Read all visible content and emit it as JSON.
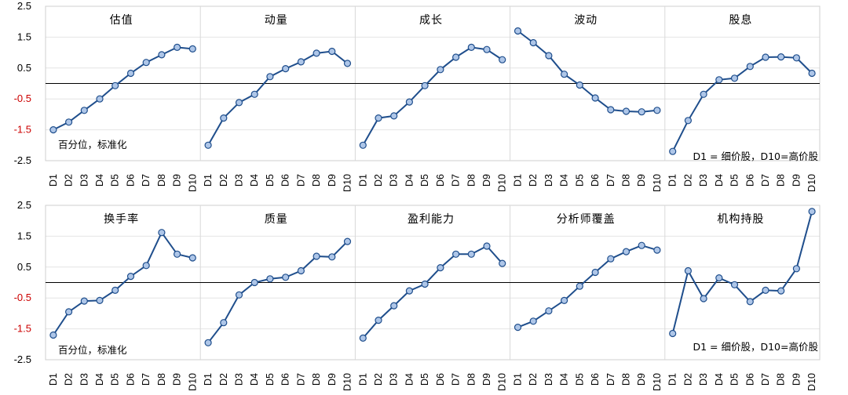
{
  "note_rank": "百分位，标准化",
  "note_legend": "D1 = 细价股，D10=高价股",
  "chart_data": [
    {
      "type": "line",
      "categories": [
        "D1",
        "D2",
        "D3",
        "D4",
        "D5",
        "D6",
        "D7",
        "D8",
        "D9",
        "D10"
      ],
      "ylim": [
        -2.5,
        2.5
      ],
      "yticks": [
        "2.5",
        "1.5",
        "0.5",
        "-0.5",
        "-1.5",
        "-2.5"
      ],
      "panels": [
        {
          "title": "估值",
          "values": [
            -1.5,
            -1.25,
            -0.87,
            -0.5,
            -0.07,
            0.33,
            0.68,
            0.93,
            1.17,
            1.12
          ]
        },
        {
          "title": "动量",
          "values": [
            -2.0,
            -1.12,
            -0.62,
            -0.35,
            0.22,
            0.48,
            0.7,
            0.98,
            1.04,
            0.65
          ]
        },
        {
          "title": "成长",
          "values": [
            -2.0,
            -1.12,
            -1.05,
            -0.6,
            -0.07,
            0.45,
            0.85,
            1.17,
            1.1,
            0.77
          ]
        },
        {
          "title": "波动",
          "values": [
            1.7,
            1.32,
            0.9,
            0.3,
            -0.05,
            -0.47,
            -0.85,
            -0.9,
            -0.92,
            -0.87
          ]
        },
        {
          "title": "股息",
          "values": [
            -2.2,
            -1.2,
            -0.35,
            0.12,
            0.17,
            0.55,
            0.85,
            0.86,
            0.83,
            0.33
          ]
        }
      ]
    },
    {
      "type": "line",
      "categories": [
        "D1",
        "D2",
        "D3",
        "D4",
        "D5",
        "D6",
        "D7",
        "D8",
        "D9",
        "D10"
      ],
      "ylim": [
        -2.5,
        2.5
      ],
      "yticks": [
        "2.5",
        "1.5",
        "0.5",
        "-0.5",
        "-1.5",
        "-2.5"
      ],
      "panels": [
        {
          "title": "换手率",
          "values": [
            -1.7,
            -0.95,
            -0.6,
            -0.58,
            -0.25,
            0.2,
            0.55,
            1.62,
            0.92,
            0.8
          ]
        },
        {
          "title": "质量",
          "values": [
            -1.95,
            -1.3,
            -0.4,
            0.0,
            0.12,
            0.17,
            0.38,
            0.85,
            0.83,
            1.33
          ]
        },
        {
          "title": "盈利能力",
          "values": [
            -1.8,
            -1.22,
            -0.75,
            -0.27,
            -0.05,
            0.48,
            0.92,
            0.92,
            1.18,
            0.62
          ]
        },
        {
          "title": "分析师覆盖",
          "values": [
            -1.45,
            -1.25,
            -0.92,
            -0.58,
            -0.12,
            0.33,
            0.77,
            1.0,
            1.2,
            1.05
          ]
        },
        {
          "title": "机构持股",
          "values": [
            -1.65,
            0.38,
            -0.52,
            0.15,
            -0.07,
            -0.62,
            -0.25,
            -0.27,
            0.45,
            2.3
          ]
        }
      ]
    }
  ]
}
